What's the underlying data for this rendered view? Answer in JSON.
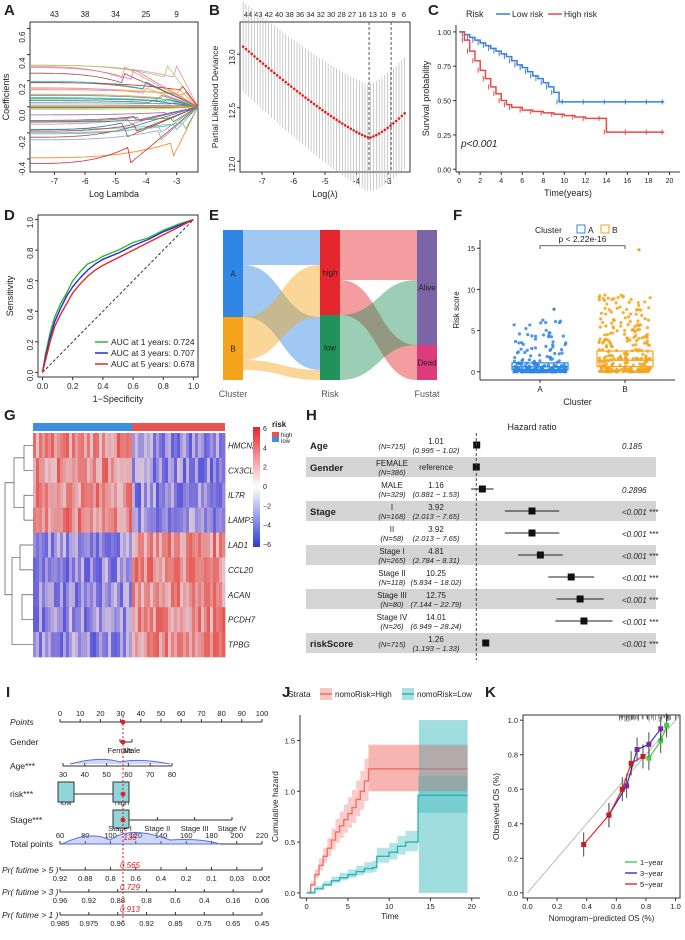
{
  "panels": {
    "A": {
      "letter": "A",
      "chart_data": {
        "type": "line",
        "xlabel": "Log Lambda",
        "ylabel": "Coefficients",
        "xticks": [
          "-7",
          "-6",
          "-5",
          "-4",
          "-3"
        ],
        "yticks": [
          "-0.4",
          "-0.2",
          "0.0",
          "0.2",
          "0.4",
          "0.6"
        ],
        "top_ticks": [
          "43",
          "38",
          "34",
          "25",
          "9"
        ],
        "xlim": [
          -7.8,
          -2.3
        ],
        "ylim": [
          -0.5,
          0.65
        ]
      }
    },
    "B": {
      "letter": "B",
      "chart_data": {
        "type": "scatter",
        "xlabel": "Log(λ)",
        "ylabel": "Partial Likelihood Deviance",
        "xticks": [
          "-7",
          "-6",
          "-5",
          "-4",
          "-3"
        ],
        "yticks": [
          "12.0",
          "12.5",
          "13.0"
        ],
        "top_ticks": [
          "44",
          "43",
          "42",
          "40",
          "38",
          "36",
          "34",
          "32",
          "30",
          "28",
          "27",
          "16",
          "13",
          "10",
          "9",
          "6"
        ],
        "lambda_min": -3.6,
        "lambda_1se": -2.9
      }
    },
    "C": {
      "letter": "C",
      "chart_data": {
        "type": "line",
        "legend_title": "Risk",
        "xlabel": "Time(years)",
        "ylabel": "Survival probability",
        "xticks": [
          "0",
          "2",
          "4",
          "6",
          "8",
          "10",
          "12",
          "14",
          "16",
          "18",
          "20"
        ],
        "yticks": [
          "0.00",
          "0.25",
          "0.50",
          "0.75",
          "1.00"
        ],
        "pvalue": "p<0.001",
        "series": [
          {
            "name": "Low risk",
            "color": "#3a7ed8",
            "x": [
              0,
              0.5,
              1,
              1.5,
              2,
              2.5,
              3,
              3.5,
              4,
              4.5,
              5,
              5.5,
              6,
              6.5,
              7,
              7.5,
              8,
              8.5,
              9,
              9.5,
              10,
              12,
              14,
              16,
              18,
              19.5
            ],
            "y": [
              1,
              0.98,
              0.96,
              0.94,
              0.92,
              0.9,
              0.88,
              0.86,
              0.84,
              0.82,
              0.79,
              0.76,
              0.74,
              0.71,
              0.68,
              0.66,
              0.63,
              0.6,
              0.56,
              0.49,
              0.49,
              0.49,
              0.49,
              0.49,
              0.49,
              0.49
            ]
          },
          {
            "name": "High risk",
            "color": "#e84a4a",
            "x": [
              0,
              0.5,
              1,
              1.5,
              2,
              2.5,
              3,
              3.5,
              4,
              4.5,
              5,
              6,
              7,
              8,
              9,
              10,
              11,
              12,
              13.5,
              14,
              16,
              18,
              19.5
            ],
            "y": [
              1,
              0.94,
              0.86,
              0.79,
              0.72,
              0.66,
              0.6,
              0.55,
              0.5,
              0.47,
              0.45,
              0.43,
              0.42,
              0.41,
              0.4,
              0.39,
              0.38,
              0.37,
              0.37,
              0.27,
              0.27,
              0.27,
              0.27
            ]
          }
        ]
      }
    },
    "D": {
      "letter": "D",
      "chart_data": {
        "type": "line",
        "xlabel": "1−Specificity",
        "ylabel": "Sensitivity",
        "xticks": [
          "0.0",
          "0.2",
          "0.4",
          "0.6",
          "0.8",
          "1.0"
        ],
        "yticks": [
          "0.0",
          "0.2",
          "0.4",
          "0.6",
          "0.8",
          "1.0"
        ],
        "series": [
          {
            "name": "AUC at 1 years: 0.724",
            "color": "#2fb82f",
            "x": [
              0,
              0.02,
              0.05,
              0.08,
              0.12,
              0.16,
              0.2,
              0.25,
              0.3,
              0.35,
              0.4,
              0.5,
              0.6,
              0.7,
              0.8,
              0.9,
              1.0
            ],
            "y": [
              0,
              0.12,
              0.26,
              0.36,
              0.45,
              0.52,
              0.6,
              0.66,
              0.71,
              0.73,
              0.76,
              0.8,
              0.85,
              0.88,
              0.93,
              0.97,
              1.0
            ]
          },
          {
            "name": "AUC at 3 years: 0.707",
            "color": "#2a2ad8",
            "x": [
              0,
              0.02,
              0.05,
              0.08,
              0.12,
              0.16,
              0.2,
              0.25,
              0.3,
              0.35,
              0.4,
              0.5,
              0.6,
              0.7,
              0.8,
              0.9,
              1.0
            ],
            "y": [
              0,
              0.1,
              0.23,
              0.33,
              0.42,
              0.5,
              0.56,
              0.62,
              0.67,
              0.71,
              0.74,
              0.78,
              0.83,
              0.87,
              0.92,
              0.96,
              1.0
            ]
          },
          {
            "name": "AUC at 5 years: 0.678",
            "color": "#e02a2a",
            "x": [
              0,
              0.02,
              0.05,
              0.08,
              0.12,
              0.16,
              0.2,
              0.25,
              0.3,
              0.35,
              0.4,
              0.5,
              0.6,
              0.7,
              0.8,
              0.9,
              1.0
            ],
            "y": [
              0,
              0.08,
              0.2,
              0.3,
              0.38,
              0.45,
              0.52,
              0.58,
              0.63,
              0.67,
              0.7,
              0.75,
              0.8,
              0.85,
              0.9,
              0.95,
              1.0
            ]
          }
        ]
      }
    },
    "E": {
      "letter": "E",
      "chart_data": {
        "type": "sankey",
        "axes": [
          "Cluster",
          "Risk",
          "Fustat"
        ],
        "nodes": [
          "A",
          "B",
          "high",
          "low",
          "Alive",
          "Dead"
        ],
        "colors": {
          "A": "#2f86e4",
          "B": "#f5a31a",
          "high": "#e6262f",
          "low": "#21925a",
          "Alive": "#7b65a6",
          "Dead": "#de3a7e"
        }
      }
    },
    "F": {
      "letter": "F",
      "chart_data": {
        "type": "box",
        "legend_title": "Cluster",
        "legend": [
          "A",
          "B"
        ],
        "xlabel": "Cluster",
        "ylabel": "Risk score",
        "categories": [
          "A",
          "B"
        ],
        "yticks": [
          "0",
          "5",
          "10",
          "15"
        ],
        "pvalue": "p < 2.22e-16",
        "medians": [
          0.6,
          1.4
        ],
        "max": [
          7.6,
          14.8
        ],
        "colors": [
          "#2f86e4",
          "#f5a31a"
        ]
      }
    },
    "G": {
      "letter": "G",
      "chart_data": {
        "type": "heatmap",
        "rows": [
          "HMCN2",
          "CX3CL1",
          "IL7R",
          "LAMP3",
          "LAD1",
          "CCL20",
          "ACAN",
          "PCDH7",
          "TPBG"
        ],
        "annotation_label": "risk",
        "annotation_levels": [
          "high",
          "low"
        ],
        "colorbar_ticks": [
          "6",
          "4",
          "2",
          "0",
          "−2",
          "−4",
          "−6"
        ]
      }
    },
    "H": {
      "letter": "H",
      "chart_data": {
        "type": "forest",
        "title": "Hazard ratio",
        "xticks": [
          "1",
          "2",
          "5",
          "10",
          "20"
        ],
        "rows": [
          {
            "var": "Age",
            "level": "",
            "n": "(N=715)",
            "hr": "1.01",
            "ci": "(0.995 − 1.02)",
            "p": "0.185",
            "v": 1.01,
            "lo": 0.995,
            "hi": 1.02,
            "shade": false
          },
          {
            "var": "Gender",
            "level": "FEMALE",
            "n": "(N=386)",
            "hr": "reference",
            "ci": "",
            "p": "",
            "v": 1,
            "lo": 1,
            "hi": 1,
            "shade": true
          },
          {
            "var": "",
            "level": "MALE",
            "n": "(N=329)",
            "hr": "1.16",
            "ci": "(0.881 − 1.53)",
            "p": "0.2896",
            "v": 1.16,
            "lo": 0.881,
            "hi": 1.53,
            "shade": false
          },
          {
            "var": "Stage",
            "level": "I",
            "n": "(N=168)",
            "hr": "3.92",
            "ci": "(2.013 − 7.65)",
            "p": "<0.001 ***",
            "v": 3.92,
            "lo": 2.013,
            "hi": 7.65,
            "shade": true
          },
          {
            "var": "",
            "level": "II",
            "n": "(N=58)",
            "hr": "3.92",
            "ci": "(2.013 − 7.65)",
            "p": "<0.001 ***",
            "v": 3.92,
            "lo": 2.013,
            "hi": 7.65,
            "shade": false
          },
          {
            "var": "",
            "level": "Stage I",
            "n": "(N=265)",
            "hr": "4.81",
            "ci": "(2.784 − 8.31)",
            "p": "<0.001 ***",
            "v": 4.81,
            "lo": 2.784,
            "hi": 8.31,
            "shade": true
          },
          {
            "var": "",
            "level": "Stage II",
            "n": "(N=118)",
            "hr": "10.25",
            "ci": "(5.834 − 18.02)",
            "p": "<0.001 ***",
            "v": 10.25,
            "lo": 5.834,
            "hi": 18.02,
            "shade": false
          },
          {
            "var": "",
            "level": "Stage III",
            "n": "(N=80)",
            "hr": "12.75",
            "ci": "(7.144 − 22.79)",
            "p": "<0.001 ***",
            "v": 12.75,
            "lo": 7.144,
            "hi": 22.79,
            "shade": true
          },
          {
            "var": "",
            "level": "Stage IV",
            "n": "(N=26)",
            "hr": "14.01",
            "ci": "(6.949 − 28.24)",
            "p": "<0.001 ***",
            "v": 14.01,
            "lo": 6.949,
            "hi": 28.24,
            "shade": false
          },
          {
            "var": "riskScore",
            "level": "",
            "n": "(N=715)",
            "hr": "1.26",
            "ci": "(1.193 − 1.33)",
            "p": "<0.001 ***",
            "v": 1.26,
            "lo": 1.193,
            "hi": 1.33,
            "shade": true
          }
        ]
      }
    },
    "I": {
      "letter": "I",
      "chart_data": {
        "type": "nomogram",
        "rows": [
          {
            "label": "Points",
            "ticks": [
              "0",
              "10",
              "20",
              "30",
              "40",
              "50",
              "60",
              "70",
              "80",
              "90",
              "100"
            ]
          },
          {
            "label": "Gender",
            "ticks": [
              "Female",
              "Male"
            ]
          },
          {
            "label": "Age***",
            "ticks": [
              "30",
              "40",
              "50",
              "60",
              "70",
              "80"
            ]
          },
          {
            "label": "risk***",
            "ticks": [
              "low",
              "high"
            ]
          },
          {
            "label": "Stage***",
            "ticks": [
              "Stage I",
              "Stage II",
              "Stage III",
              "Stage IV"
            ]
          },
          {
            "label": "Total points",
            "ticks": [
              "60",
              "80",
              "100",
              "120",
              "140",
              "160",
              "180",
              "200",
              "220"
            ]
          },
          {
            "label": "Pr( futime > 5 )",
            "ticks": [
              "0.92",
              "0.88",
              "0.8",
              "0.6",
              "0.4",
              "0.2",
              "0.1",
              "0.03",
              "0.005"
            ]
          },
          {
            "label": "Pr( futime > 3 )",
            "ticks": [
              "0.96",
              "0.92",
              "0.88",
              "0.8",
              "0.6",
              "0.4",
              "0.16",
              "0.06"
            ]
          },
          {
            "label": "Pr( futime > 1 )",
            "ticks": [
              "0.985",
              "0.975",
              "0.96",
              "0.92",
              "0.85",
              "0.75",
              "0.65",
              "0.45"
            ]
          }
        ],
        "highlight": [
          "135",
          "0.565",
          "0.729",
          "0.913"
        ]
      }
    },
    "J": {
      "letter": "J",
      "chart_data": {
        "type": "line",
        "legend_title": "Strata",
        "xlabel": "Time",
        "ylabel": "Cumulative hazard",
        "xticks": [
          "0",
          "5",
          "10",
          "15",
          "20"
        ],
        "yticks": [
          "0.0",
          "0.5",
          "1.0",
          "1.5"
        ],
        "series": [
          {
            "name": "nomoRisk=High",
            "color": "#f07167",
            "x": [
              0,
              0.5,
              1,
              1.5,
              2,
              2.5,
              3,
              3.5,
              4,
              4.5,
              5,
              5.5,
              6,
              6.5,
              7,
              7.5,
              8,
              10,
              12,
              14,
              16,
              18,
              19.5
            ],
            "y": [
              0,
              0.08,
              0.18,
              0.27,
              0.36,
              0.44,
              0.52,
              0.6,
              0.66,
              0.72,
              0.78,
              0.84,
              0.92,
              1.0,
              1.1,
              1.22,
              1.22,
              1.22,
              1.22,
              1.22,
              1.22,
              1.22,
              1.22
            ]
          },
          {
            "name": "nomoRisk=Low",
            "color": "#2ab3b8",
            "x": [
              0,
              1,
              2,
              3,
              4,
              5,
              6,
              7,
              8,
              8.5,
              9,
              10,
              11,
              12,
              13,
              13.5,
              14,
              16,
              18,
              19.5
            ],
            "y": [
              0,
              0.04,
              0.08,
              0.12,
              0.15,
              0.18,
              0.21,
              0.24,
              0.25,
              0.36,
              0.36,
              0.4,
              0.46,
              0.5,
              0.5,
              0.96,
              0.96,
              0.96,
              0.96,
              0.96
            ]
          }
        ]
      }
    },
    "K": {
      "letter": "K",
      "chart_data": {
        "type": "line",
        "xlabel": "Nomogram−predicted OS (%)",
        "ylabel": "Observed OS (%)",
        "xticks": [
          "0.0",
          "0.2",
          "0.4",
          "0.6",
          "0.8",
          "1.0"
        ],
        "yticks": [
          "0.0",
          "0.2",
          "0.4",
          "0.6",
          "0.8",
          "1.0"
        ],
        "series": [
          {
            "name": "1−year",
            "color": "#3fcf3f",
            "x": [
              0.82,
              0.9,
              0.94
            ],
            "y": [
              0.78,
              0.88,
              0.97
            ]
          },
          {
            "name": "3−year",
            "color": "#3030d0",
            "x": [
              0.55,
              0.67,
              0.74,
              0.82,
              0.9
            ],
            "y": [
              0.45,
              0.62,
              0.83,
              0.86,
              0.95
            ]
          },
          {
            "name": "5−year",
            "color": "#e02a2a",
            "x": [
              0.38,
              0.55,
              0.64,
              0.7,
              0.78
            ],
            "y": [
              0.28,
              0.45,
              0.6,
              0.75,
              0.79
            ]
          }
        ]
      }
    }
  }
}
